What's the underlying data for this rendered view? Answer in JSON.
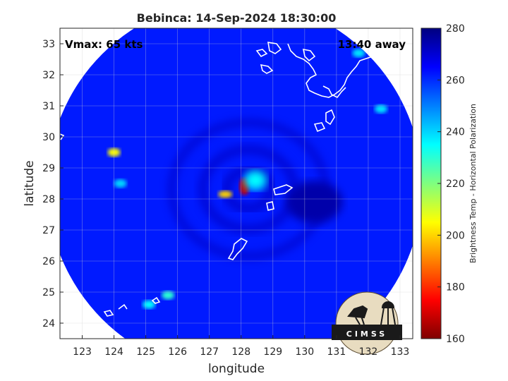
{
  "chart_data": {
    "type": "heatmap",
    "title": "Bebinca: 14-Sep-2024 18:30:00",
    "xlabel": "longitude",
    "ylabel": "latitude",
    "xlim": [
      122.3,
      133.4
    ],
    "ylim": [
      23.5,
      33.5
    ],
    "xticks": [
      123,
      124,
      125,
      126,
      127,
      128,
      129,
      130,
      131,
      132,
      133
    ],
    "yticks": [
      24,
      25,
      26,
      27,
      28,
      29,
      30,
      31,
      32,
      33
    ],
    "grid": true,
    "annotations": {
      "vmax": "Vmax: 65 kts",
      "time_away": "13:40 away"
    },
    "colorbar": {
      "label": "Brightness Temp - Horizontal Polarization",
      "min": 160,
      "max": 280,
      "ticks": [
        160,
        180,
        200,
        220,
        240,
        260,
        280
      ],
      "colormap": "jet",
      "placement": "right"
    },
    "field": {
      "swath_center": [
        127.8,
        28.4
      ],
      "swath_radius_deg": 5.9,
      "background_bt": 262,
      "features": [
        {
          "kind": "core",
          "lon": 128.1,
          "lat": 28.4,
          "bt": 168
        },
        {
          "kind": "core",
          "lon": 127.5,
          "lat": 28.15,
          "bt": 200
        },
        {
          "kind": "eyewall",
          "lon": 128.45,
          "lat": 28.6,
          "bt": 235
        },
        {
          "kind": "rainband",
          "lon": 124.0,
          "lat": 29.5,
          "bt": 205
        },
        {
          "kind": "rainband",
          "lon": 124.2,
          "lat": 28.5,
          "bt": 240
        },
        {
          "kind": "rainband",
          "lon": 125.7,
          "lat": 24.9,
          "bt": 230
        },
        {
          "kind": "rainband",
          "lon": 125.1,
          "lat": 24.6,
          "bt": 235
        },
        {
          "kind": "rainband",
          "lon": 132.4,
          "lat": 30.9,
          "bt": 238
        },
        {
          "kind": "rainband",
          "lon": 131.7,
          "lat": 32.7,
          "bt": 238
        },
        {
          "kind": "warm",
          "lon": 130.3,
          "lat": 27.9,
          "bt": 275
        }
      ]
    }
  },
  "logo": {
    "text": "CIMSS"
  }
}
